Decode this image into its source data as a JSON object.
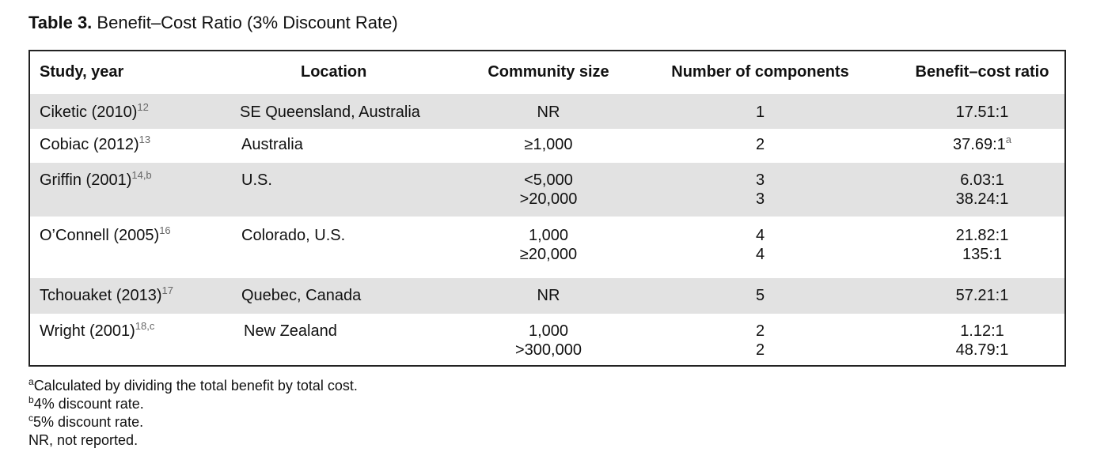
{
  "caption": {
    "label": "Table 3.",
    "title": "Benefit–Cost Ratio (3% Discount Rate)"
  },
  "table": {
    "headers": {
      "study": "Study, year",
      "location": "Location",
      "community_size": "Community size",
      "components": "Number of components",
      "ratio": "Benefit–cost ratio"
    },
    "rows": [
      {
        "study": "Ciketic (2010)",
        "ref": "12",
        "location": "SE Queensland, Australia",
        "size": [
          "NR"
        ],
        "components": [
          "1"
        ],
        "ratio": [
          "17.51:1"
        ],
        "ratio_note": ""
      },
      {
        "study": "Cobiac (2012)",
        "ref": "13",
        "location": "Australia",
        "size": [
          "≥1,000"
        ],
        "components": [
          "2"
        ],
        "ratio": [
          "37.69:1"
        ],
        "ratio_note": "a"
      },
      {
        "study": "Griffin (2001)",
        "ref": "14,b",
        "location": "U.S.",
        "size": [
          "<5,000",
          ">20,000"
        ],
        "components": [
          "3",
          "3"
        ],
        "ratio": [
          "6.03:1",
          "38.24:1"
        ],
        "ratio_note": ""
      },
      {
        "study": "O’Connell (2005)",
        "ref": "16",
        "location": "Colorado, U.S.",
        "size": [
          "1,000",
          "≥20,000"
        ],
        "components": [
          "4",
          "4"
        ],
        "ratio": [
          "21.82:1",
          "135:1"
        ],
        "ratio_note": ""
      },
      {
        "study": "Tchouaket (2013)",
        "ref": "17",
        "location": "Quebec, Canada",
        "size": [
          "NR"
        ],
        "components": [
          "5"
        ],
        "ratio": [
          "57.21:1"
        ],
        "ratio_note": ""
      },
      {
        "study": "Wright (2001)",
        "ref": "18,c",
        "location": "New Zealand",
        "size": [
          "1,000",
          ">300,000"
        ],
        "components": [
          "2",
          "2"
        ],
        "ratio": [
          "1.12:1",
          "48.79:1"
        ],
        "ratio_note": ""
      }
    ]
  },
  "footnotes": [
    {
      "mark": "a",
      "text": "Calculated by dividing the total benefit by total cost."
    },
    {
      "mark": "b",
      "text": "4% discount rate."
    },
    {
      "mark": "c",
      "text": "5% discount rate."
    },
    {
      "mark": "",
      "text": "NR, not reported."
    }
  ]
}
